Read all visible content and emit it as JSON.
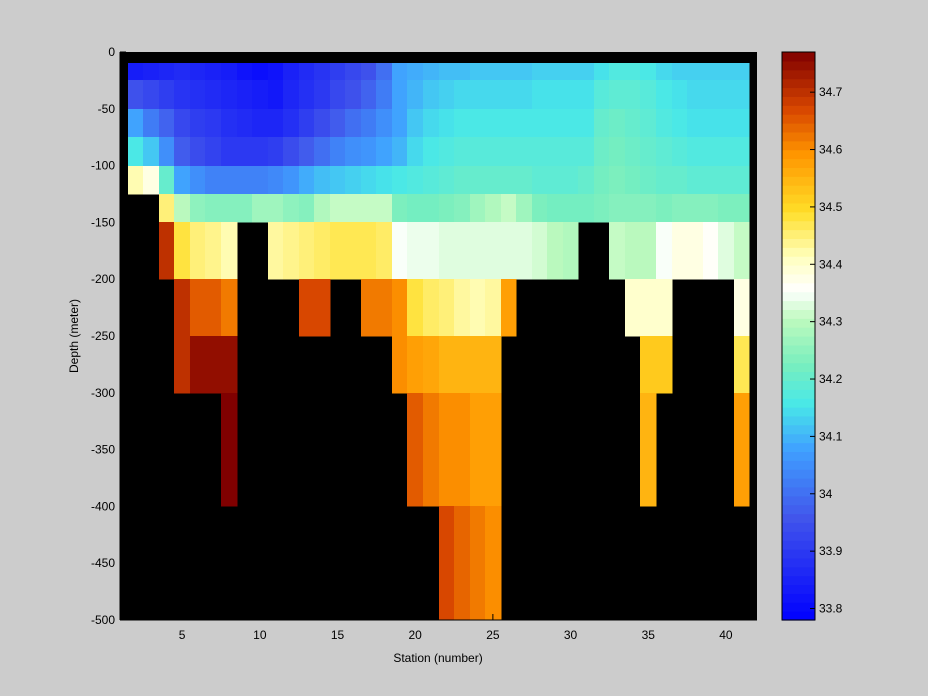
{
  "chart_data": {
    "type": "heatmap",
    "title": "",
    "xlabel": "Station (number)",
    "ylabel": "Depth (meter)",
    "xlim": [
      1,
      42
    ],
    "ylim": [
      -500,
      0
    ],
    "x_ticks": [
      5,
      10,
      15,
      20,
      25,
      30,
      35,
      40
    ],
    "y_ticks": [
      0,
      -50,
      -100,
      -150,
      -200,
      -250,
      -300,
      -350,
      -400,
      -450,
      -500
    ],
    "colorbar": {
      "label": "",
      "min": 33.78,
      "max": 34.77,
      "ticks": [
        33.8,
        33.9,
        34,
        34.1,
        34.2,
        34.3,
        34.4,
        34.5,
        34.6,
        34.7
      ],
      "colormap": "jet-white-center",
      "no_data_color": "#000000",
      "background_color": "#cccccc"
    },
    "stations": [
      2,
      3,
      4,
      5,
      6,
      7,
      8,
      9,
      10,
      11,
      12,
      13,
      14,
      15,
      16,
      17,
      18,
      19,
      20,
      21,
      22,
      23,
      24,
      25,
      26,
      27,
      28,
      29,
      30,
      31,
      32,
      33,
      34,
      35,
      36,
      37,
      38,
      39,
      40,
      41
    ],
    "depth_bins": [
      [
        0,
        -10
      ],
      [
        -10,
        -25
      ],
      [
        -25,
        -50
      ],
      [
        -50,
        -75
      ],
      [
        -75,
        -100
      ],
      [
        -100,
        -125
      ],
      [
        -125,
        -150
      ],
      [
        -150,
        -200
      ],
      [
        -200,
        -250
      ],
      [
        -250,
        -300
      ],
      [
        -300,
        -400
      ],
      [
        -400,
        -500
      ]
    ],
    "salinity": [
      [
        null,
        null,
        null,
        null,
        null,
        null,
        null,
        null,
        null,
        null,
        null,
        null,
        null,
        null,
        null,
        null,
        null,
        null,
        null,
        null,
        null,
        null,
        null,
        null,
        null,
        null,
        null,
        null,
        null,
        null,
        null,
        null,
        null,
        null,
        null,
        null,
        null,
        null,
        null,
        null
      ],
      [
        33.84,
        33.85,
        33.86,
        33.87,
        33.86,
        33.85,
        33.84,
        33.82,
        33.81,
        33.82,
        33.85,
        33.87,
        33.89,
        33.91,
        33.93,
        33.95,
        34.0,
        34.08,
        34.09,
        34.1,
        34.11,
        34.11,
        34.12,
        34.12,
        34.12,
        34.12,
        34.13,
        34.13,
        34.13,
        34.13,
        34.15,
        34.17,
        34.17,
        34.16,
        34.14,
        34.13,
        34.13,
        34.13,
        34.13,
        34.13
      ],
      [
        33.95,
        33.93,
        33.91,
        33.89,
        33.88,
        33.87,
        33.86,
        33.85,
        33.84,
        33.83,
        33.86,
        33.88,
        33.9,
        33.93,
        33.95,
        33.98,
        34.02,
        34.08,
        34.1,
        34.12,
        34.13,
        34.14,
        34.14,
        34.14,
        34.14,
        34.14,
        34.15,
        34.15,
        34.15,
        34.15,
        34.18,
        34.19,
        34.19,
        34.18,
        34.16,
        34.15,
        34.14,
        34.14,
        34.14,
        34.14
      ],
      [
        34.08,
        34.02,
        33.98,
        33.93,
        33.91,
        33.9,
        33.88,
        33.87,
        33.86,
        33.86,
        33.88,
        33.91,
        33.94,
        33.97,
        34.0,
        34.02,
        34.05,
        34.08,
        34.12,
        34.14,
        34.15,
        34.16,
        34.16,
        34.16,
        34.16,
        34.16,
        34.16,
        34.16,
        34.16,
        34.16,
        34.2,
        34.21,
        34.2,
        34.19,
        34.17,
        34.16,
        34.15,
        34.15,
        34.15,
        34.15
      ],
      [
        34.16,
        34.12,
        34.05,
        33.97,
        33.94,
        33.92,
        33.9,
        33.9,
        33.9,
        33.91,
        33.94,
        33.97,
        34.0,
        34.03,
        34.05,
        34.06,
        34.08,
        34.1,
        34.14,
        34.16,
        34.17,
        34.18,
        34.18,
        34.18,
        34.18,
        34.18,
        34.18,
        34.18,
        34.18,
        34.18,
        34.21,
        34.22,
        34.21,
        34.2,
        34.19,
        34.18,
        34.17,
        34.17,
        34.17,
        34.17
      ],
      [
        34.42,
        34.38,
        34.2,
        34.08,
        34.05,
        34.03,
        34.03,
        34.03,
        34.03,
        34.04,
        34.06,
        34.09,
        34.11,
        34.12,
        34.13,
        34.14,
        34.15,
        34.16,
        34.17,
        34.18,
        34.19,
        34.2,
        34.2,
        34.2,
        34.2,
        34.2,
        34.19,
        34.19,
        34.19,
        34.2,
        34.22,
        34.23,
        34.22,
        34.21,
        34.2,
        34.2,
        34.19,
        34.19,
        34.19,
        34.19
      ],
      [
        null,
        null,
        34.45,
        34.3,
        34.25,
        34.24,
        34.24,
        34.24,
        34.27,
        34.27,
        34.25,
        34.24,
        34.29,
        34.31,
        34.31,
        34.31,
        34.31,
        34.23,
        34.22,
        34.22,
        34.23,
        34.24,
        34.27,
        34.29,
        34.31,
        34.27,
        34.23,
        34.22,
        34.22,
        34.22,
        34.23,
        34.24,
        34.24,
        34.24,
        34.23,
        34.24,
        34.24,
        34.24,
        34.23,
        34.23
      ],
      [
        null,
        null,
        34.7,
        34.48,
        34.45,
        34.44,
        34.42,
        null,
        null,
        34.43,
        34.44,
        34.45,
        34.46,
        34.47,
        34.47,
        34.47,
        34.46,
        34.35,
        34.34,
        34.34,
        34.33,
        34.33,
        34.33,
        34.33,
        34.33,
        34.33,
        34.32,
        34.3,
        34.29,
        null,
        null,
        34.31,
        34.3,
        34.3,
        34.35,
        34.38,
        34.38,
        34.36,
        34.33,
        34.31
      ],
      [
        null,
        null,
        null,
        34.7,
        34.65,
        34.65,
        34.62,
        null,
        null,
        null,
        null,
        34.67,
        34.67,
        null,
        null,
        34.62,
        34.62,
        34.6,
        34.48,
        34.46,
        34.45,
        34.43,
        34.42,
        34.43,
        34.58,
        null,
        null,
        null,
        null,
        null,
        null,
        null,
        34.4,
        34.4,
        34.4,
        null,
        null,
        null,
        null,
        34.38
      ],
      [
        null,
        null,
        null,
        34.7,
        34.75,
        34.75,
        34.75,
        null,
        null,
        null,
        null,
        null,
        null,
        null,
        null,
        null,
        null,
        34.6,
        34.58,
        34.57,
        34.55,
        34.55,
        34.55,
        34.55,
        null,
        null,
        null,
        null,
        null,
        null,
        null,
        null,
        null,
        34.52,
        34.52,
        null,
        null,
        null,
        null,
        34.47
      ],
      [
        null,
        null,
        null,
        null,
        null,
        null,
        34.77,
        null,
        null,
        null,
        null,
        null,
        null,
        null,
        null,
        null,
        null,
        null,
        34.65,
        34.62,
        34.6,
        34.6,
        34.58,
        34.58,
        null,
        null,
        null,
        null,
        null,
        null,
        null,
        null,
        null,
        34.55,
        null,
        null,
        null,
        null,
        null,
        34.58
      ],
      [
        null,
        null,
        null,
        null,
        null,
        null,
        null,
        null,
        null,
        null,
        null,
        null,
        null,
        null,
        null,
        null,
        null,
        null,
        null,
        null,
        34.67,
        34.64,
        34.62,
        34.6,
        null,
        null,
        null,
        null,
        null,
        null,
        null,
        null,
        null,
        null,
        null,
        null,
        null,
        null,
        null,
        null
      ]
    ]
  }
}
